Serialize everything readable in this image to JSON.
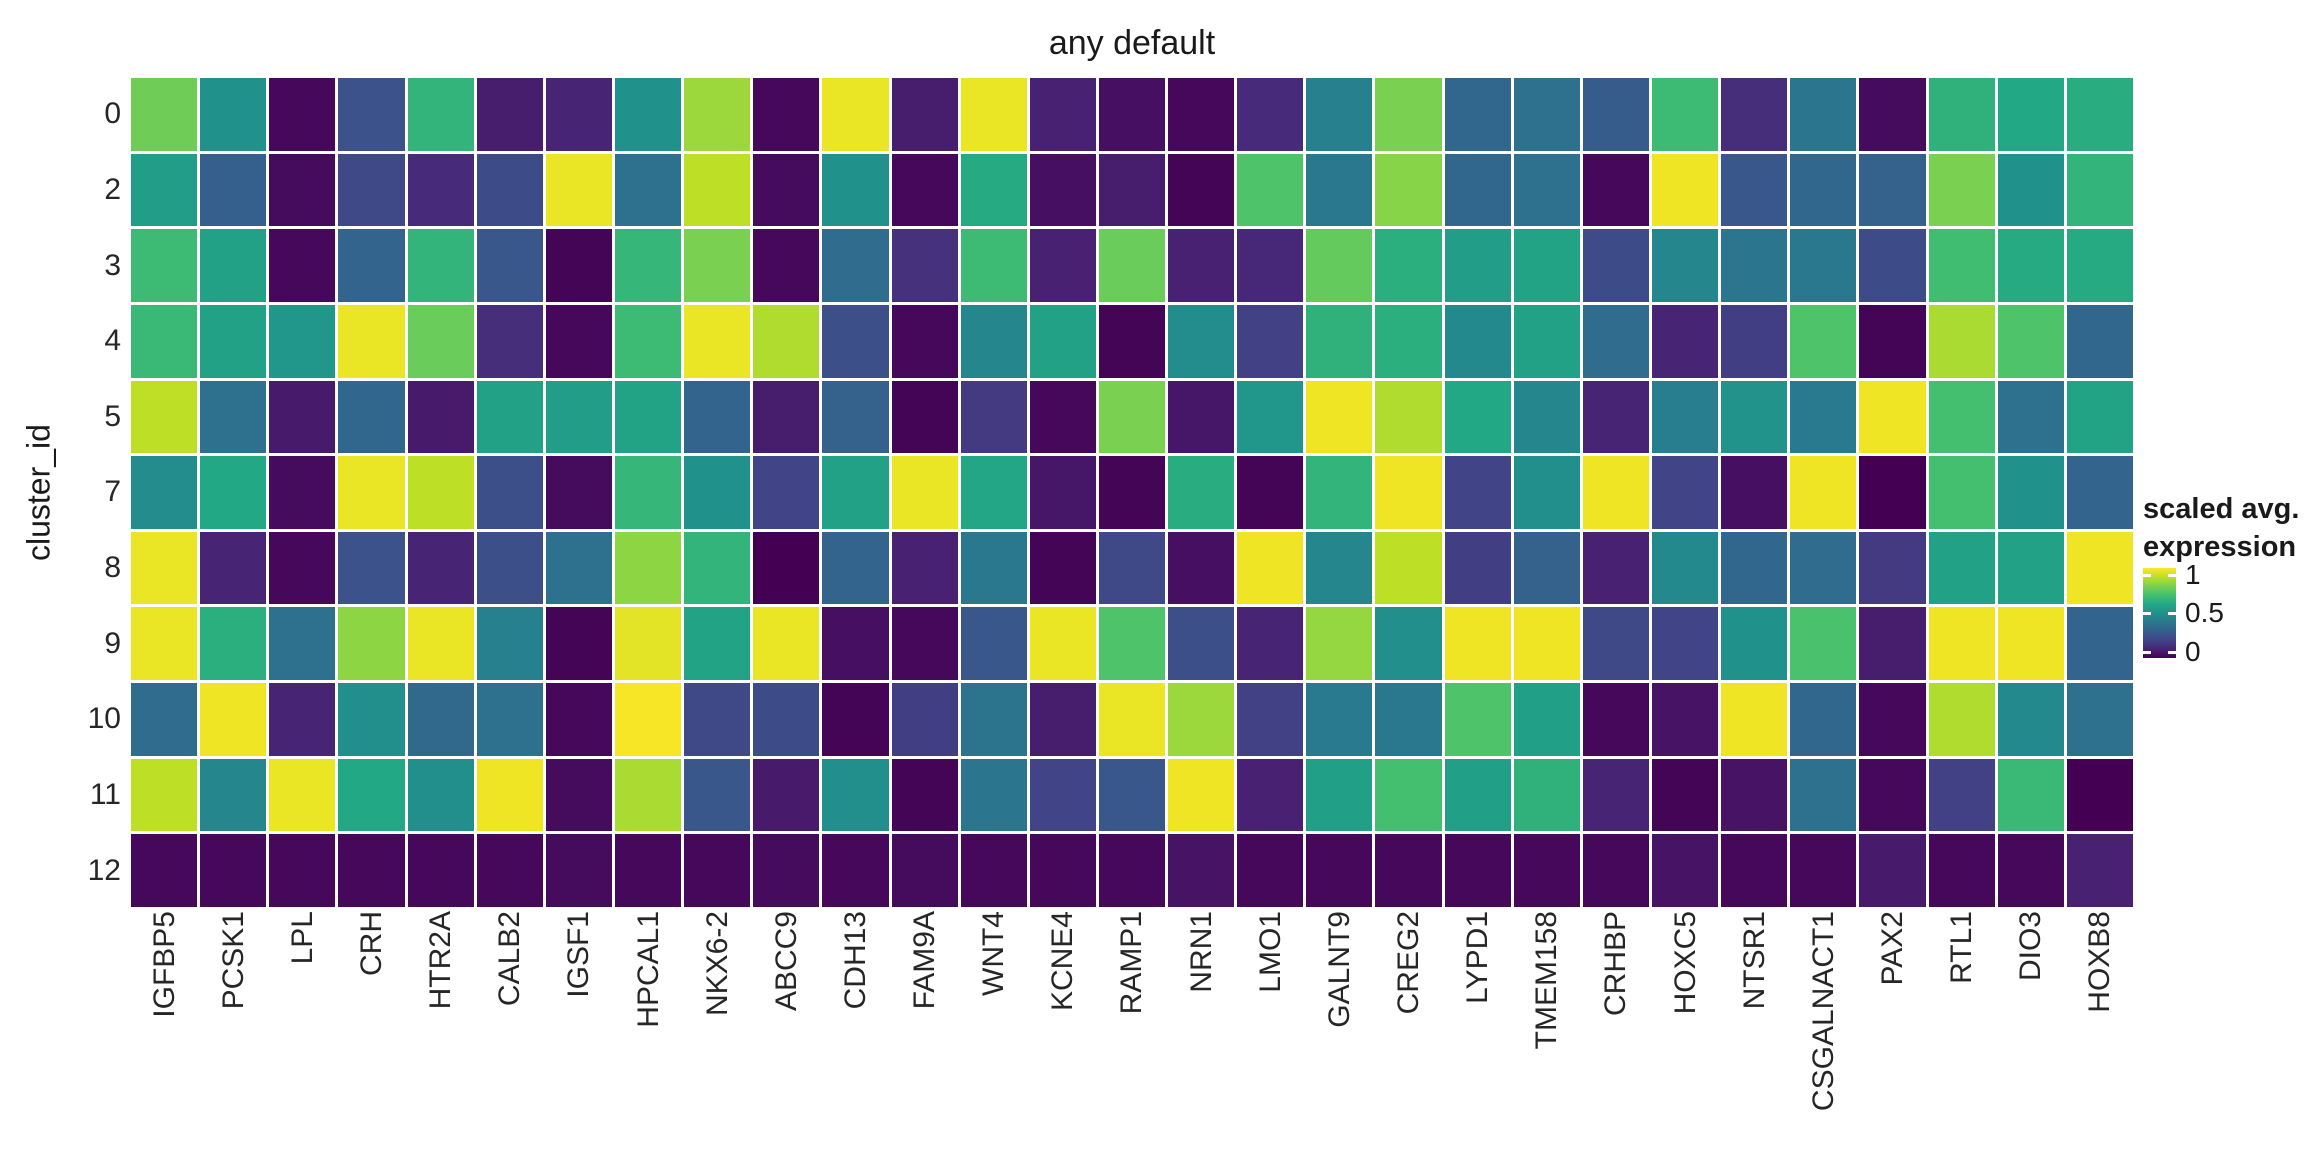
{
  "title": "any default",
  "y_axis": {
    "label": "cluster_id"
  },
  "legend": {
    "title_line1": "scaled avg.",
    "title_line2": "expression",
    "ticks": [
      {
        "label": "1",
        "value": 1.0
      },
      {
        "label": "0.5",
        "value": 0.5
      },
      {
        "label": "0",
        "value": 0.0
      }
    ]
  },
  "colors": {
    "background": "#FFFFFF",
    "text": "#262626",
    "gridline": "#FFFFFF"
  },
  "chart_data": {
    "type": "heatmap",
    "title": "any default",
    "xlabel": "",
    "ylabel": "cluster_id",
    "legend_title": "scaled avg. expression",
    "value_range": [
      0,
      1
    ],
    "colormap": {
      "name": "viridis",
      "stops": [
        "#440154",
        "#482475",
        "#414487",
        "#355F8D",
        "#2A788E",
        "#21918C",
        "#22A884",
        "#44BF70",
        "#7AD151",
        "#BDDF26",
        "#FDE725"
      ]
    },
    "x_categories": [
      "IGFBP5",
      "PCSK1",
      "LPL",
      "CRH",
      "HTR2A",
      "CALB2",
      "IGSF1",
      "HPCAL1",
      "NKX6-2",
      "ABCC9",
      "CDH13",
      "FAM9A",
      "WNT4",
      "KCNE4",
      "RAMP1",
      "NRN1",
      "LMO1",
      "GALNT9",
      "CREG2",
      "LYPD1",
      "TMEM158",
      "CRHBP",
      "HOXC5",
      "NTSR1",
      "CSGALNACT1",
      "PAX2",
      "RTL1",
      "DIO3",
      "HOXB8"
    ],
    "y_categories": [
      "0",
      "2",
      "3",
      "4",
      "5",
      "7",
      "8",
      "9",
      "10",
      "11",
      "12"
    ],
    "values": [
      [
        0.78,
        0.5,
        0.02,
        0.25,
        0.65,
        0.08,
        0.1,
        0.5,
        0.85,
        0.02,
        0.97,
        0.08,
        0.97,
        0.09,
        0.04,
        0.02,
        0.12,
        0.43,
        0.8,
        0.33,
        0.37,
        0.29,
        0.68,
        0.13,
        0.39,
        0.03,
        0.64,
        0.6,
        0.62
      ],
      [
        0.55,
        0.3,
        0.03,
        0.22,
        0.12,
        0.23,
        0.97,
        0.37,
        0.9,
        0.03,
        0.5,
        0.02,
        0.61,
        0.04,
        0.08,
        0.01,
        0.72,
        0.4,
        0.82,
        0.33,
        0.37,
        0.02,
        0.98,
        0.27,
        0.33,
        0.31,
        0.8,
        0.5,
        0.65
      ],
      [
        0.68,
        0.57,
        0.02,
        0.32,
        0.65,
        0.27,
        0.01,
        0.66,
        0.8,
        0.02,
        0.35,
        0.14,
        0.68,
        0.09,
        0.77,
        0.09,
        0.11,
        0.76,
        0.63,
        0.55,
        0.58,
        0.23,
        0.46,
        0.39,
        0.4,
        0.23,
        0.69,
        0.61,
        0.61
      ],
      [
        0.67,
        0.57,
        0.52,
        0.97,
        0.77,
        0.13,
        0.02,
        0.68,
        0.97,
        0.88,
        0.24,
        0.02,
        0.46,
        0.57,
        0.01,
        0.48,
        0.19,
        0.64,
        0.63,
        0.47,
        0.57,
        0.35,
        0.1,
        0.18,
        0.72,
        0.01,
        0.87,
        0.72,
        0.33
      ],
      [
        0.9,
        0.37,
        0.07,
        0.33,
        0.07,
        0.57,
        0.55,
        0.58,
        0.32,
        0.08,
        0.31,
        0.01,
        0.17,
        0.02,
        0.8,
        0.06,
        0.52,
        0.98,
        0.88,
        0.6,
        0.46,
        0.1,
        0.42,
        0.51,
        0.41,
        0.98,
        0.7,
        0.37,
        0.58
      ],
      [
        0.48,
        0.6,
        0.03,
        0.97,
        0.9,
        0.24,
        0.03,
        0.66,
        0.5,
        0.2,
        0.57,
        0.97,
        0.59,
        0.06,
        0.01,
        0.62,
        0.01,
        0.65,
        0.98,
        0.2,
        0.49,
        0.98,
        0.2,
        0.04,
        0.98,
        0.0,
        0.7,
        0.5,
        0.32
      ],
      [
        0.97,
        0.1,
        0.02,
        0.25,
        0.1,
        0.24,
        0.37,
        0.83,
        0.65,
        0.0,
        0.32,
        0.09,
        0.4,
        0.01,
        0.22,
        0.04,
        0.98,
        0.46,
        0.9,
        0.18,
        0.31,
        0.09,
        0.47,
        0.33,
        0.35,
        0.17,
        0.57,
        0.57,
        0.98
      ],
      [
        0.97,
        0.63,
        0.37,
        0.83,
        0.97,
        0.43,
        0.01,
        0.96,
        0.58,
        0.97,
        0.04,
        0.02,
        0.27,
        0.97,
        0.72,
        0.24,
        0.1,
        0.84,
        0.49,
        0.98,
        0.98,
        0.22,
        0.2,
        0.5,
        0.71,
        0.08,
        0.98,
        0.98,
        0.32
      ],
      [
        0.35,
        0.98,
        0.1,
        0.49,
        0.34,
        0.37,
        0.02,
        0.99,
        0.22,
        0.23,
        0.01,
        0.18,
        0.38,
        0.08,
        0.97,
        0.85,
        0.19,
        0.41,
        0.4,
        0.72,
        0.56,
        0.02,
        0.05,
        0.98,
        0.33,
        0.02,
        0.88,
        0.47,
        0.37
      ],
      [
        0.9,
        0.46,
        0.97,
        0.6,
        0.49,
        0.98,
        0.03,
        0.87,
        0.27,
        0.07,
        0.49,
        0.01,
        0.39,
        0.2,
        0.27,
        0.98,
        0.09,
        0.56,
        0.7,
        0.56,
        0.64,
        0.1,
        0.01,
        0.05,
        0.37,
        0.02,
        0.19,
        0.67,
        0.0
      ],
      [
        0.02,
        0.02,
        0.02,
        0.02,
        0.02,
        0.02,
        0.03,
        0.02,
        0.02,
        0.03,
        0.02,
        0.03,
        0.02,
        0.02,
        0.02,
        0.05,
        0.02,
        0.02,
        0.02,
        0.02,
        0.02,
        0.02,
        0.05,
        0.02,
        0.02,
        0.07,
        0.02,
        0.02,
        0.09
      ]
    ]
  }
}
